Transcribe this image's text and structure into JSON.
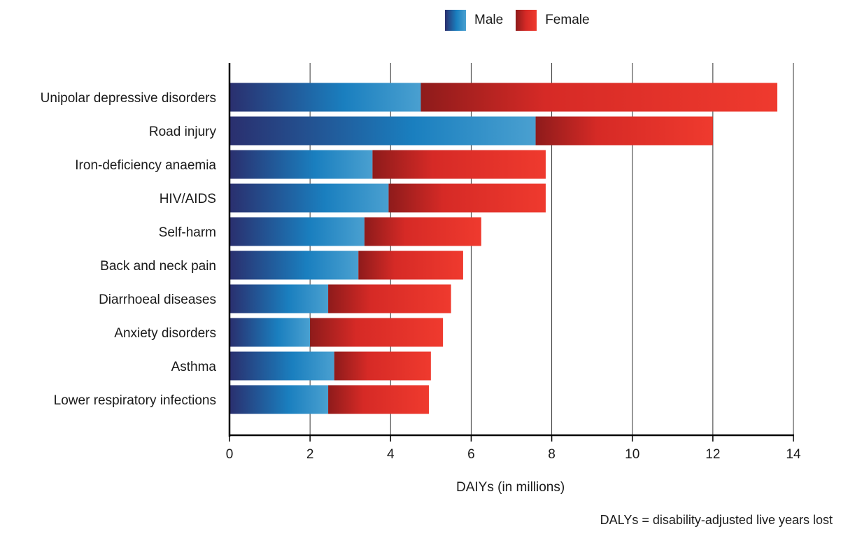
{
  "colors": {
    "male_dark": "#2a2f6e",
    "male_mid": "#1a7fbf",
    "male_light": "#4aa0d0",
    "female_dark": "#8e1b1b",
    "female_mid": "#d62a26",
    "female_light": "#ef3a2e",
    "gridline": "#333333",
    "axis": "#000000"
  },
  "legend": {
    "male_label": "Male",
    "female_label": "Female"
  },
  "footnote": "DALYs = disability-adjusted live years lost",
  "chart_data": {
    "type": "bar",
    "orientation": "horizontal",
    "stacked": true,
    "categories": [
      "Unipolar depressive disorders",
      "Road injury",
      "Iron-deficiency anaemia",
      "HIV/AIDS",
      "Self-harm",
      "Back and neck pain",
      "Diarrhoeal diseases",
      "Anxiety disorders",
      "Asthma",
      "Lower respiratory infections"
    ],
    "series": [
      {
        "name": "Male",
        "values": [
          4.75,
          7.6,
          3.55,
          3.95,
          3.35,
          3.2,
          2.45,
          2.0,
          2.6,
          2.45
        ]
      },
      {
        "name": "Female",
        "values": [
          8.85,
          4.4,
          4.3,
          3.9,
          2.9,
          2.6,
          3.05,
          3.3,
          2.4,
          2.5
        ]
      }
    ],
    "xlabel": "DAIYs (in millions)",
    "ylabel": "",
    "xlim": [
      0,
      14
    ],
    "xticks": [
      0,
      2,
      4,
      6,
      8,
      10,
      12,
      14
    ],
    "grid": "vertical",
    "legend_position": "top"
  }
}
